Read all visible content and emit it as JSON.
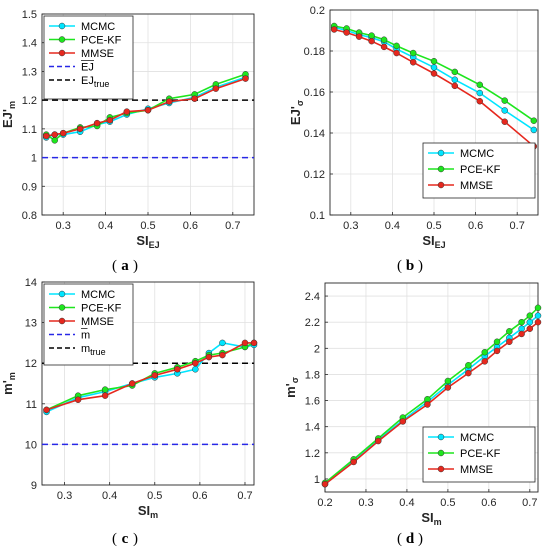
{
  "colors": {
    "MCMC": "#00e5ff",
    "PCE-KF": "#1ee61e",
    "MMSE": "#e6281e",
    "prior_mean": "#2828e6",
    "true_value": "#000000",
    "axis": "#262626"
  },
  "chart_data": [
    {
      "panel": "a",
      "type": "line",
      "xlabel": "SI",
      "xlabel_sub": "EJ",
      "ylabel": "EJ'",
      "ylabel_sub": "m",
      "xlim": [
        0.25,
        0.75
      ],
      "ylim": [
        0.8,
        1.5
      ],
      "xticks": [
        "0.3",
        "0.4",
        "0.5",
        "0.6",
        "0.7"
      ],
      "yticks": [
        "0.8",
        "0.9",
        "1",
        "1.1",
        "1.2",
        "1.3",
        "1.4",
        "1.5"
      ],
      "legend_position": "top-left",
      "x": [
        0.26,
        0.28,
        0.3,
        0.34,
        0.38,
        0.41,
        0.45,
        0.5,
        0.55,
        0.61,
        0.66,
        0.73
      ],
      "series": [
        {
          "name": "MCMC",
          "values": [
            1.07,
            1.08,
            1.08,
            1.09,
            1.115,
            1.125,
            1.15,
            1.17,
            1.19,
            1.21,
            1.245,
            1.28
          ]
        },
        {
          "name": "PCE-KF",
          "values": [
            1.08,
            1.06,
            1.085,
            1.105,
            1.11,
            1.14,
            1.155,
            1.165,
            1.205,
            1.22,
            1.255,
            1.29
          ]
        },
        {
          "name": "MMSE",
          "values": [
            1.075,
            1.08,
            1.085,
            1.1,
            1.12,
            1.13,
            1.16,
            1.165,
            1.195,
            1.205,
            1.24,
            1.275
          ]
        }
      ],
      "hlines": [
        {
          "name": "EJ",
          "value": 1.0,
          "color": "#2828e6"
        },
        {
          "name": "EJ",
          "name_sub": "true",
          "value": 1.2,
          "color": "#000000"
        }
      ]
    },
    {
      "panel": "b",
      "type": "line",
      "xlabel": "SI",
      "xlabel_sub": "EJ",
      "ylabel": "EJ'",
      "ylabel_sub": "σ",
      "xlim": [
        0.25,
        0.75
      ],
      "ylim": [
        0.1,
        0.2
      ],
      "xticks": [
        "0.3",
        "0.4",
        "0.5",
        "0.6",
        "0.7"
      ],
      "yticks": [
        "0.1",
        "0.12",
        "0.14",
        "0.16",
        "0.18",
        "0.2"
      ],
      "legend_position": "bottom-right",
      "x": [
        0.26,
        0.29,
        0.32,
        0.35,
        0.38,
        0.41,
        0.45,
        0.5,
        0.55,
        0.61,
        0.67,
        0.74
      ],
      "series": [
        {
          "name": "MCMC",
          "values": [
            0.1915,
            0.19,
            0.188,
            0.1865,
            0.1845,
            0.181,
            0.177,
            0.172,
            0.166,
            0.1595,
            0.151,
            0.1415
          ]
        },
        {
          "name": "PCE-KF",
          "values": [
            0.1922,
            0.191,
            0.189,
            0.1875,
            0.1855,
            0.1825,
            0.179,
            0.175,
            0.1698,
            0.1635,
            0.1558,
            0.146
          ]
        },
        {
          "name": "MMSE",
          "values": [
            0.1905,
            0.189,
            0.187,
            0.1848,
            0.182,
            0.179,
            0.1745,
            0.169,
            0.163,
            0.1555,
            0.1455,
            0.1335
          ]
        }
      ]
    },
    {
      "panel": "c",
      "type": "line",
      "xlabel": "SI",
      "xlabel_sub": "m",
      "ylabel": "m'",
      "ylabel_sub": "m",
      "xlim": [
        0.25,
        0.72
      ],
      "ylim": [
        9,
        14
      ],
      "xticks": [
        "0.3",
        "0.4",
        "0.5",
        "0.6",
        "0.7"
      ],
      "yticks": [
        "9",
        "10",
        "11",
        "12",
        "13",
        "14"
      ],
      "legend_position": "top-left",
      "x": [
        0.26,
        0.33,
        0.39,
        0.45,
        0.5,
        0.55,
        0.59,
        0.62,
        0.65,
        0.7,
        0.72
      ],
      "series": [
        {
          "name": "MCMC",
          "values": [
            10.8,
            11.15,
            11.3,
            11.5,
            11.65,
            11.75,
            11.85,
            12.25,
            12.5,
            12.4,
            12.45
          ]
        },
        {
          "name": "PCE-KF",
          "values": [
            10.85,
            11.2,
            11.35,
            11.45,
            11.75,
            11.9,
            12.05,
            12.2,
            12.25,
            12.4,
            12.5
          ]
        },
        {
          "name": "MMSE",
          "values": [
            10.85,
            11.1,
            11.2,
            11.5,
            11.7,
            11.85,
            12.0,
            12.15,
            12.2,
            12.5,
            12.5
          ]
        }
      ],
      "hlines": [
        {
          "name": "m",
          "value": 10.0,
          "color": "#2828e6"
        },
        {
          "name": "m",
          "name_sub": "true",
          "value": 12.0,
          "color": "#000000"
        }
      ]
    },
    {
      "panel": "d",
      "type": "line",
      "xlabel": "SI",
      "xlabel_sub": "m",
      "ylabel": "m'",
      "ylabel_sub": "σ",
      "xlim": [
        0.2,
        0.72
      ],
      "ylim": [
        0.9,
        2.5
      ],
      "xticks": [
        "0.2",
        "0.3",
        "0.4",
        "0.5",
        "0.6",
        "0.7"
      ],
      "yticks": [
        "1",
        "1.2",
        "1.4",
        "1.6",
        "1.8",
        "2",
        "2.2",
        "2.4"
      ],
      "legend_position": "bottom-right",
      "x": [
        0.2,
        0.27,
        0.33,
        0.39,
        0.45,
        0.5,
        0.55,
        0.59,
        0.62,
        0.65,
        0.68,
        0.7,
        0.72
      ],
      "series": [
        {
          "name": "MCMC",
          "values": [
            0.96,
            1.14,
            1.3,
            1.45,
            1.59,
            1.72,
            1.84,
            1.94,
            2.01,
            2.08,
            2.15,
            2.2,
            2.25
          ]
        },
        {
          "name": "PCE-KF",
          "values": [
            0.97,
            1.15,
            1.31,
            1.47,
            1.61,
            1.75,
            1.87,
            1.97,
            2.05,
            2.13,
            2.2,
            2.25,
            2.31
          ]
        },
        {
          "name": "MMSE",
          "values": [
            0.96,
            1.13,
            1.29,
            1.44,
            1.57,
            1.7,
            1.81,
            1.9,
            1.98,
            2.05,
            2.11,
            2.15,
            2.2
          ]
        }
      ]
    }
  ],
  "panel_labels": [
    "a",
    "b",
    "c",
    "d"
  ]
}
